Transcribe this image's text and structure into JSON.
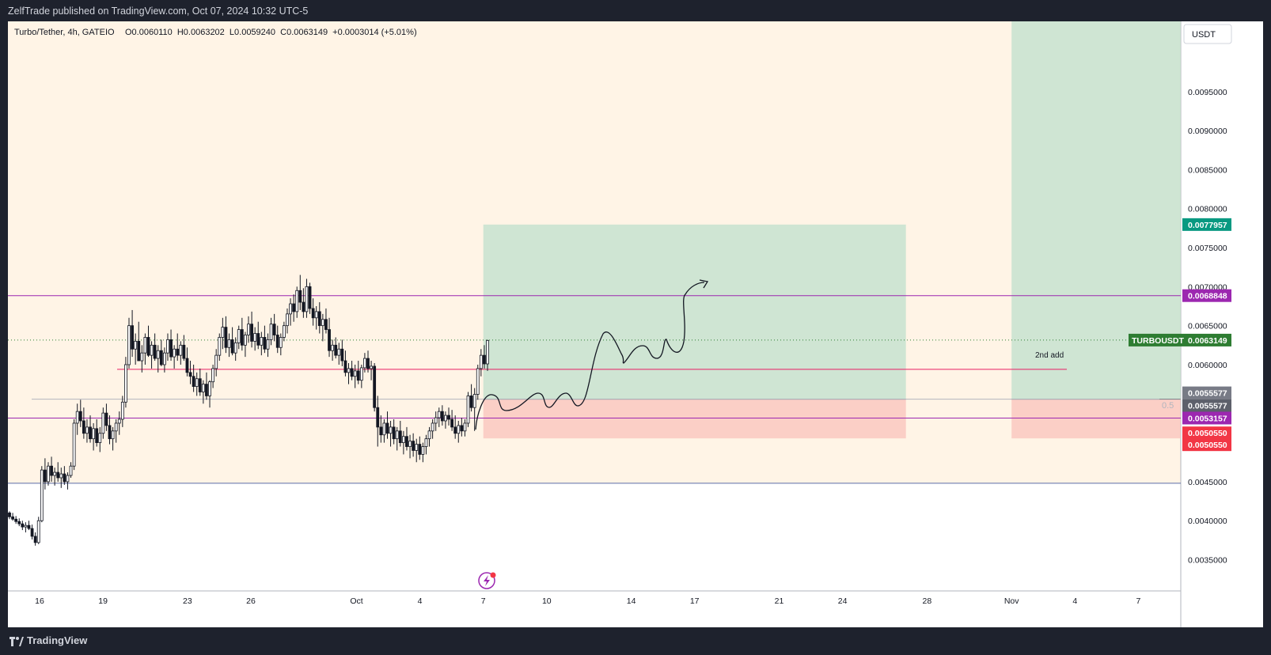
{
  "publisher_line": "ZelfTrade published on TradingView.com, Oct 07, 2024 10:32 UTC-5",
  "footer_brand": "TradingView",
  "legend": {
    "symbol": "Turbo/Tether, 4h, GATEIO",
    "ohlc": "O0.0060110  H0.0063202  L0.0059240  C0.0063149  +0.0003014 (+5.01%)"
  },
  "currency_button": "USDT",
  "annotation_text": "2nd add",
  "fib_label": "0.5",
  "colors": {
    "zone_bg": "#fff4e6",
    "target_zone": "#cfe5d3",
    "stop_zone": "#fbcfc6",
    "purple_line": "#9c27b0",
    "pink_line": "#e91e63",
    "blue_line": "#5b6ca8",
    "price_green": "#2e7d32",
    "price_teal": "#089981",
    "price_red": "#f23645",
    "price_purple": "#9c27b0",
    "price_gray": "#787b86"
  },
  "price_badges": [
    {
      "value": "0.0077957",
      "color": "#089981"
    },
    {
      "value": "0.0068848",
      "color": "#9c27b0"
    },
    {
      "value": "0.0063149",
      "color": "#2e7d32",
      "symbol": "TURBOUSDT"
    },
    {
      "value": "0.0055577",
      "color": "#787b86"
    },
    {
      "value": "0.0055577",
      "color": "#5d606b"
    },
    {
      "value": "0.0053157",
      "color": "#9c27b0"
    },
    {
      "value": "0.0050550",
      "color": "#f23645"
    },
    {
      "value": "0.0050550",
      "color": "#f23645"
    }
  ],
  "chart_data": {
    "type": "candlestick",
    "symbol": "Turbo/Tether, 4h, GATEIO",
    "y_ticks": [
      "0.0035000",
      "0.0040000",
      "0.0045000",
      "0.0050000",
      "0.0055000",
      "0.0060000",
      "0.0065000",
      "0.0070000",
      "0.0075000",
      "0.0080000",
      "0.0085000",
      "0.0090000",
      "0.0095000"
    ],
    "ylim": [
      0.0031,
      0.0104
    ],
    "x_ticks": [
      {
        "label": "16",
        "day": 0
      },
      {
        "label": "19",
        "day": 3
      },
      {
        "label": "23",
        "day": 7
      },
      {
        "label": "26",
        "day": 10
      },
      {
        "label": "Oct",
        "day": 15
      },
      {
        "label": "4",
        "day": 18
      },
      {
        "label": "7",
        "day": 21
      },
      {
        "label": "10",
        "day": 24
      },
      {
        "label": "14",
        "day": 28
      },
      {
        "label": "17",
        "day": 31
      },
      {
        "label": "21",
        "day": 35
      },
      {
        "label": "24",
        "day": 38
      },
      {
        "label": "28",
        "day": 42
      },
      {
        "label": "Nov",
        "day": 46
      },
      {
        "label": "4",
        "day": 49
      },
      {
        "label": "7",
        "day": 52
      }
    ],
    "levels": {
      "purple_top": 0.0068848,
      "last_price": 0.0063149,
      "pink_entry": 0.00594,
      "fib_05": 0.0055577,
      "purple_low": 0.0053157,
      "support_blue": 0.00448
    },
    "position_long_1": {
      "entry": 0.0055577,
      "target": 0.0077957,
      "stop": 0.005055,
      "start_day": 21,
      "end_day": 41
    },
    "position_long_2": {
      "entry": 0.0055577,
      "target": 0.0104,
      "stop": 0.005055,
      "start_day": 46,
      "end_day": 54
    },
    "candles_ohlc": [
      [
        0.0041,
        0.00412,
        0.00402,
        0.00405
      ],
      [
        0.00405,
        0.0041,
        0.004,
        0.00402
      ],
      [
        0.00402,
        0.00406,
        0.00396,
        0.00399
      ],
      [
        0.00399,
        0.00403,
        0.00393,
        0.00396
      ],
      [
        0.00396,
        0.004,
        0.00388,
        0.00392
      ],
      [
        0.00392,
        0.00398,
        0.00385,
        0.00394
      ],
      [
        0.00394,
        0.004,
        0.00388,
        0.0039
      ],
      [
        0.0039,
        0.00395,
        0.00376,
        0.0038
      ],
      [
        0.0038,
        0.00385,
        0.00368,
        0.00372
      ],
      [
        0.00372,
        0.00405,
        0.0037,
        0.004
      ],
      [
        0.004,
        0.0047,
        0.00398,
        0.00465
      ],
      [
        0.00465,
        0.0048,
        0.0044,
        0.0045
      ],
      [
        0.0045,
        0.00475,
        0.00445,
        0.0047
      ],
      [
        0.0047,
        0.00482,
        0.0045,
        0.00458
      ],
      [
        0.00458,
        0.00468,
        0.00445,
        0.00462
      ],
      [
        0.00462,
        0.00475,
        0.0045,
        0.00455
      ],
      [
        0.00455,
        0.00468,
        0.00442,
        0.0046
      ],
      [
        0.0046,
        0.0047,
        0.00446,
        0.0045
      ],
      [
        0.0045,
        0.00462,
        0.0044,
        0.00458
      ],
      [
        0.00458,
        0.00475,
        0.00455,
        0.0047
      ],
      [
        0.0047,
        0.0053,
        0.00465,
        0.00525
      ],
      [
        0.00525,
        0.0055,
        0.0051,
        0.0054
      ],
      [
        0.0054,
        0.00555,
        0.0052,
        0.00528
      ],
      [
        0.00528,
        0.00545,
        0.00505,
        0.00512
      ],
      [
        0.00512,
        0.0053,
        0.005,
        0.0052
      ],
      [
        0.0052,
        0.00535,
        0.005,
        0.00505
      ],
      [
        0.00505,
        0.00525,
        0.0049,
        0.00518
      ],
      [
        0.00518,
        0.0053,
        0.00495,
        0.005
      ],
      [
        0.005,
        0.0052,
        0.00488,
        0.00512
      ],
      [
        0.00512,
        0.00545,
        0.00505,
        0.00538
      ],
      [
        0.00538,
        0.0055,
        0.00515,
        0.00522
      ],
      [
        0.00522,
        0.00535,
        0.00498,
        0.00505
      ],
      [
        0.00505,
        0.0052,
        0.0049,
        0.00515
      ],
      [
        0.00515,
        0.0053,
        0.005,
        0.00525
      ],
      [
        0.00525,
        0.0054,
        0.0051,
        0.0053
      ],
      [
        0.0053,
        0.0056,
        0.0052,
        0.00552
      ],
      [
        0.00552,
        0.0061,
        0.00545,
        0.006
      ],
      [
        0.006,
        0.0066,
        0.00595,
        0.0065
      ],
      [
        0.0065,
        0.0067,
        0.0061,
        0.0062
      ],
      [
        0.0062,
        0.0064,
        0.006,
        0.0063
      ],
      [
        0.0063,
        0.00655,
        0.00615,
        0.00605
      ],
      [
        0.00605,
        0.00625,
        0.0059,
        0.00615
      ],
      [
        0.00615,
        0.0064,
        0.006,
        0.00635
      ],
      [
        0.00635,
        0.0065,
        0.0061,
        0.00612
      ],
      [
        0.00612,
        0.0063,
        0.00595,
        0.00625
      ],
      [
        0.00625,
        0.0064,
        0.00605,
        0.00608
      ],
      [
        0.00608,
        0.00625,
        0.0059,
        0.00618
      ],
      [
        0.00618,
        0.00632,
        0.00598,
        0.006
      ],
      [
        0.006,
        0.00622,
        0.0059,
        0.00615
      ],
      [
        0.00615,
        0.0064,
        0.00605,
        0.00632
      ],
      [
        0.00632,
        0.00645,
        0.00605,
        0.0061
      ],
      [
        0.0061,
        0.00625,
        0.00595,
        0.0062
      ],
      [
        0.0062,
        0.0064,
        0.00605,
        0.00612
      ],
      [
        0.00612,
        0.0063,
        0.006,
        0.00625
      ],
      [
        0.00625,
        0.00638,
        0.00605,
        0.00608
      ],
      [
        0.00608,
        0.00622,
        0.00585,
        0.0059
      ],
      [
        0.0059,
        0.00605,
        0.00575,
        0.00585
      ],
      [
        0.00585,
        0.006,
        0.00565,
        0.00572
      ],
      [
        0.00572,
        0.0059,
        0.0056,
        0.00582
      ],
      [
        0.00582,
        0.00595,
        0.0056,
        0.00565
      ],
      [
        0.00565,
        0.0058,
        0.0055,
        0.00575
      ],
      [
        0.00575,
        0.0059,
        0.00555,
        0.0056
      ],
      [
        0.0056,
        0.0058,
        0.00545,
        0.00578
      ],
      [
        0.00578,
        0.006,
        0.0057,
        0.00595
      ],
      [
        0.00595,
        0.0062,
        0.00585,
        0.00612
      ],
      [
        0.00612,
        0.0064,
        0.00605,
        0.00635
      ],
      [
        0.00635,
        0.0066,
        0.0062,
        0.00648
      ],
      [
        0.00648,
        0.00662,
        0.00615,
        0.00622
      ],
      [
        0.00622,
        0.0064,
        0.0061,
        0.00632
      ],
      [
        0.00632,
        0.00648,
        0.00612,
        0.00615
      ],
      [
        0.00615,
        0.00635,
        0.00605,
        0.00628
      ],
      [
        0.00628,
        0.0065,
        0.0062,
        0.00645
      ],
      [
        0.00645,
        0.0066,
        0.00618,
        0.00625
      ],
      [
        0.00625,
        0.00642,
        0.0061,
        0.00638
      ],
      [
        0.00638,
        0.00662,
        0.00628,
        0.00652
      ],
      [
        0.00652,
        0.00668,
        0.00622,
        0.0063
      ],
      [
        0.0063,
        0.00648,
        0.00618,
        0.0064
      ],
      [
        0.0064,
        0.00655,
        0.0062,
        0.00625
      ],
      [
        0.00625,
        0.00642,
        0.00612,
        0.00635
      ],
      [
        0.00635,
        0.0065,
        0.00615,
        0.0062
      ],
      [
        0.0062,
        0.0064,
        0.0061,
        0.00632
      ],
      [
        0.00632,
        0.0066,
        0.00625,
        0.00652
      ],
      [
        0.00652,
        0.00665,
        0.0063,
        0.00638
      ],
      [
        0.00638,
        0.0065,
        0.00615,
        0.00622
      ],
      [
        0.00622,
        0.0064,
        0.00612,
        0.00635
      ],
      [
        0.00635,
        0.00655,
        0.0063,
        0.0065
      ],
      [
        0.0065,
        0.00672,
        0.0064,
        0.00665
      ],
      [
        0.00665,
        0.00685,
        0.0065,
        0.00678
      ],
      [
        0.00678,
        0.0069,
        0.00655,
        0.00668
      ],
      [
        0.00668,
        0.007,
        0.0066,
        0.00695
      ],
      [
        0.00695,
        0.00715,
        0.0067,
        0.0068
      ],
      [
        0.0068,
        0.00698,
        0.0066,
        0.00668
      ],
      [
        0.00668,
        0.0071,
        0.0066,
        0.007
      ],
      [
        0.007,
        0.00705,
        0.00665,
        0.00672
      ],
      [
        0.00672,
        0.00685,
        0.0065,
        0.0066
      ],
      [
        0.0066,
        0.00675,
        0.00645,
        0.00668
      ],
      [
        0.00668,
        0.0068,
        0.0064,
        0.0065
      ],
      [
        0.0065,
        0.00665,
        0.0063,
        0.00658
      ],
      [
        0.00658,
        0.00672,
        0.0064,
        0.00645
      ],
      [
        0.00645,
        0.0066,
        0.0061,
        0.00618
      ],
      [
        0.00618,
        0.00632,
        0.00605,
        0.00625
      ],
      [
        0.00625,
        0.00635,
        0.00608,
        0.00612
      ],
      [
        0.00612,
        0.00628,
        0.006,
        0.0062
      ],
      [
        0.0062,
        0.00632,
        0.00598,
        0.00605
      ],
      [
        0.00605,
        0.00618,
        0.00585,
        0.0059
      ],
      [
        0.0059,
        0.00602,
        0.00575,
        0.00595
      ],
      [
        0.00595,
        0.00605,
        0.0058,
        0.00585
      ],
      [
        0.00585,
        0.006,
        0.0057,
        0.00592
      ],
      [
        0.00592,
        0.00605,
        0.00575,
        0.0058
      ],
      [
        0.0058,
        0.006,
        0.0057,
        0.00596
      ],
      [
        0.00596,
        0.00615,
        0.0059,
        0.00608
      ],
      [
        0.00608,
        0.00618,
        0.0059,
        0.00595
      ],
      [
        0.00595,
        0.00605,
        0.0058,
        0.00598
      ],
      [
        0.00598,
        0.00602,
        0.0054,
        0.00545
      ],
      [
        0.00545,
        0.0056,
        0.00495,
        0.0052
      ],
      [
        0.0052,
        0.00535,
        0.005,
        0.0051
      ],
      [
        0.0051,
        0.0053,
        0.005,
        0.00525
      ],
      [
        0.00525,
        0.0054,
        0.00505,
        0.00512
      ],
      [
        0.00512,
        0.00528,
        0.00495,
        0.0052
      ],
      [
        0.0052,
        0.0053,
        0.00498,
        0.00505
      ],
      [
        0.00505,
        0.0052,
        0.0049,
        0.00515
      ],
      [
        0.00515,
        0.00528,
        0.00495,
        0.005
      ],
      [
        0.005,
        0.00515,
        0.00485,
        0.00508
      ],
      [
        0.00508,
        0.0052,
        0.0049,
        0.00495
      ],
      [
        0.00495,
        0.0051,
        0.0048,
        0.00502
      ],
      [
        0.00502,
        0.00512,
        0.00482,
        0.0049
      ],
      [
        0.0049,
        0.00505,
        0.00475,
        0.00498
      ],
      [
        0.00498,
        0.00508,
        0.00478,
        0.00485
      ],
      [
        0.00485,
        0.005,
        0.00475,
        0.00495
      ],
      [
        0.00495,
        0.0051,
        0.00485,
        0.00505
      ],
      [
        0.00505,
        0.0052,
        0.00495,
        0.00515
      ],
      [
        0.00515,
        0.0053,
        0.00505,
        0.00525
      ],
      [
        0.00525,
        0.0054,
        0.00515,
        0.00532
      ],
      [
        0.00532,
        0.00545,
        0.0052,
        0.0054
      ],
      [
        0.0054,
        0.00548,
        0.00522,
        0.00528
      ],
      [
        0.00528,
        0.0054,
        0.00518,
        0.00535
      ],
      [
        0.00535,
        0.00545,
        0.00522,
        0.0053
      ],
      [
        0.0053,
        0.00542,
        0.00515,
        0.0052
      ],
      [
        0.0052,
        0.00535,
        0.00505,
        0.00512
      ],
      [
        0.00512,
        0.00528,
        0.005,
        0.00522
      ],
      [
        0.00522,
        0.00532,
        0.00508,
        0.00515
      ],
      [
        0.00515,
        0.0053,
        0.00508,
        0.00525
      ],
      [
        0.00525,
        0.00565,
        0.0052,
        0.0056
      ],
      [
        0.0056,
        0.00575,
        0.0054,
        0.00545
      ],
      [
        0.00545,
        0.0057,
        0.00515,
        0.00562
      ],
      [
        0.00562,
        0.006,
        0.00555,
        0.00595
      ],
      [
        0.00595,
        0.0062,
        0.00585,
        0.00612
      ],
      [
        0.00612,
        0.00625,
        0.00595,
        0.00601
      ],
      [
        0.00601,
        0.00632,
        0.00592,
        0.00631
      ]
    ],
    "markup": {
      "projection_arrow": "hand-drawn path from entry zone rising to above 0.0068848"
    }
  }
}
